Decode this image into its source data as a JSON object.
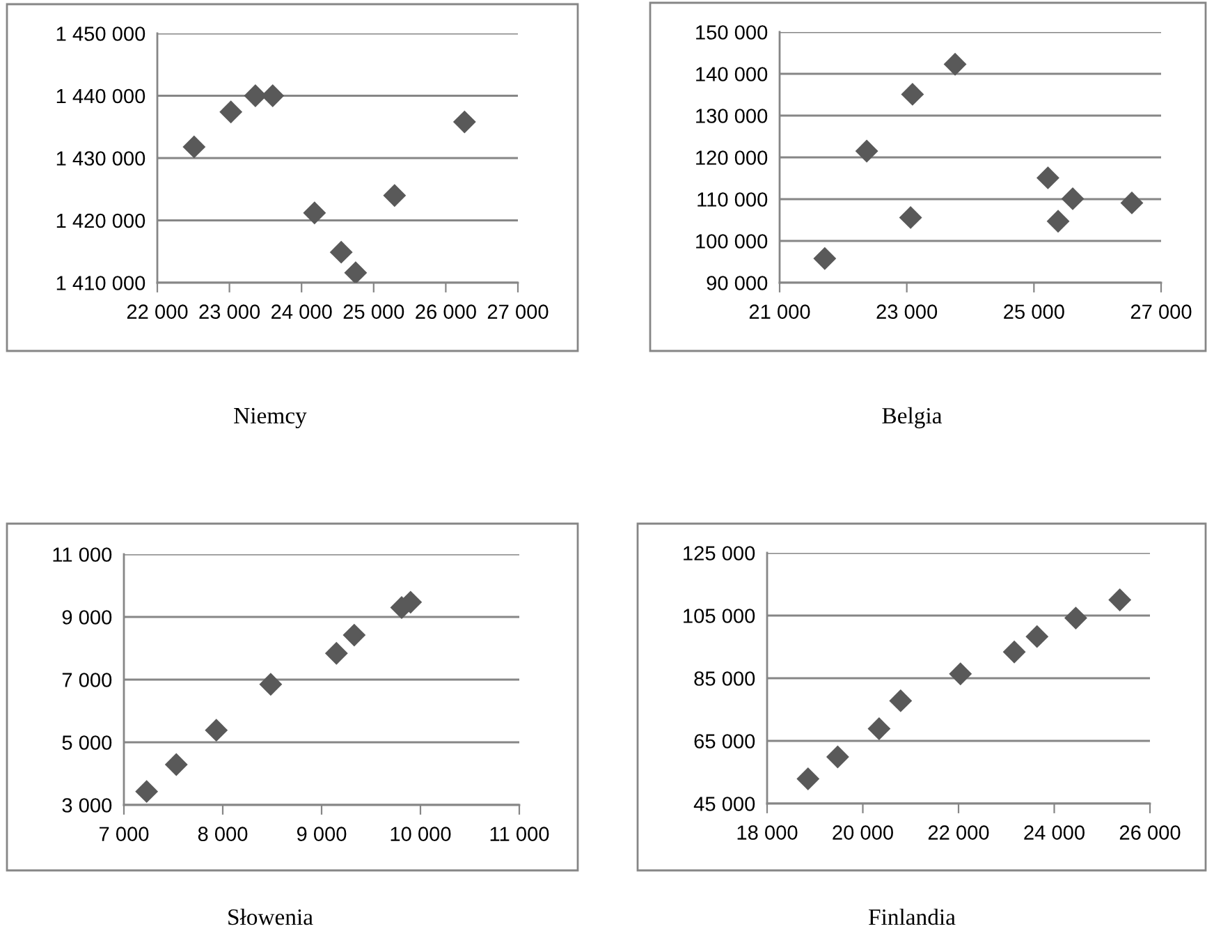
{
  "chart_data": [
    {
      "type": "scatter",
      "title": "Niemcy",
      "marker": "diamond",
      "grid": "y",
      "x": [
        22510,
        23020,
        23360,
        23600,
        24180,
        24550,
        24750,
        25290,
        26260
      ],
      "series": [
        {
          "color": "#595959",
          "values": [
            1431800,
            1437400,
            1440000,
            1440000,
            1421200,
            1414900,
            1411600,
            1424000,
            1435800
          ]
        }
      ],
      "xlim": [
        22000,
        27000
      ],
      "xticks": [
        {
          "value": 22000,
          "label": "22 000"
        },
        {
          "value": 23000,
          "label": "23 000"
        },
        {
          "value": 24000,
          "label": "24 000"
        },
        {
          "value": 25000,
          "label": "25 000"
        },
        {
          "value": 26000,
          "label": "26 000"
        },
        {
          "value": 27000,
          "label": "27 000"
        }
      ],
      "ylim": [
        1410000,
        1450000
      ],
      "yticks": [
        {
          "value": 1410000,
          "label": "1 410 000"
        },
        {
          "value": 1420000,
          "label": "1 420 000"
        },
        {
          "value": 1430000,
          "label": "1 430 000"
        },
        {
          "value": 1440000,
          "label": "1 440 000"
        },
        {
          "value": 1450000,
          "label": "1 450 000"
        }
      ]
    },
    {
      "type": "scatter",
      "title": "Belgia",
      "marker": "diamond",
      "grid": "y",
      "x": [
        21710,
        22370,
        23060,
        23090,
        23760,
        25220,
        25380,
        25610,
        26540
      ],
      "series": [
        {
          "color": "#595959",
          "values": [
            95800,
            121500,
            105600,
            135100,
            142300,
            115100,
            104700,
            110100,
            109100
          ]
        }
      ],
      "xlim": [
        21000,
        27000
      ],
      "xticks": [
        {
          "value": 21000,
          "label": "21 000"
        },
        {
          "value": 23000,
          "label": "23 000"
        },
        {
          "value": 25000,
          "label": "25 000"
        },
        {
          "value": 27000,
          "label": "27 000"
        }
      ],
      "ylim": [
        90000,
        150000
      ],
      "yticks": [
        {
          "value": 90000,
          "label": "90 000"
        },
        {
          "value": 100000,
          "label": "100 000"
        },
        {
          "value": 110000,
          "label": "110 000"
        },
        {
          "value": 120000,
          "label": "120 000"
        },
        {
          "value": 130000,
          "label": "130 000"
        },
        {
          "value": 140000,
          "label": "140 000"
        },
        {
          "value": 150000,
          "label": "150 000"
        }
      ]
    },
    {
      "type": "scatter",
      "title": "Słowenia",
      "marker": "diamond",
      "grid": "y",
      "x": [
        7230,
        7530,
        7935,
        8485,
        9150,
        9330,
        9810,
        9900
      ],
      "series": [
        {
          "color": "#595959",
          "values": [
            3430,
            4290,
            5385,
            6850,
            7840,
            8420,
            9300,
            9470
          ]
        }
      ],
      "xlim": [
        7000,
        11000
      ],
      "xticks": [
        {
          "value": 7000,
          "label": "7 000"
        },
        {
          "value": 8000,
          "label": "8 000"
        },
        {
          "value": 9000,
          "label": "9 000"
        },
        {
          "value": 10000,
          "label": "10 000"
        },
        {
          "value": 11000,
          "label": "11 000"
        }
      ],
      "ylim": [
        3000,
        11000
      ],
      "yticks": [
        {
          "value": 3000,
          "label": "3 000"
        },
        {
          "value": 5000,
          "label": "5 000"
        },
        {
          "value": 7000,
          "label": "7 000"
        },
        {
          "value": 9000,
          "label": "9 000"
        },
        {
          "value": 11000,
          "label": "11 000"
        }
      ]
    },
    {
      "type": "scatter",
      "title": "Finlandia",
      "marker": "diamond",
      "grid": "y",
      "x": [
        18855,
        19475,
        20340,
        20790,
        22040,
        23165,
        23640,
        24450,
        25370
      ],
      "series": [
        {
          "color": "#595959",
          "values": [
            52900,
            59900,
            68900,
            77800,
            86400,
            93400,
            98300,
            104200,
            110000
          ]
        }
      ],
      "xlim": [
        18000,
        26000
      ],
      "xticks": [
        {
          "value": 18000,
          "label": "18 000"
        },
        {
          "value": 20000,
          "label": "20 000"
        },
        {
          "value": 22000,
          "label": "22 000"
        },
        {
          "value": 24000,
          "label": "24 000"
        },
        {
          "value": 26000,
          "label": "26 000"
        }
      ],
      "ylim": [
        45000,
        125000
      ],
      "yticks": [
        {
          "value": 45000,
          "label": "45 000"
        },
        {
          "value": 65000,
          "label": "65 000"
        },
        {
          "value": 85000,
          "label": "85 000"
        },
        {
          "value": 105000,
          "label": "105 000"
        },
        {
          "value": 125000,
          "label": "125 000"
        }
      ]
    }
  ]
}
